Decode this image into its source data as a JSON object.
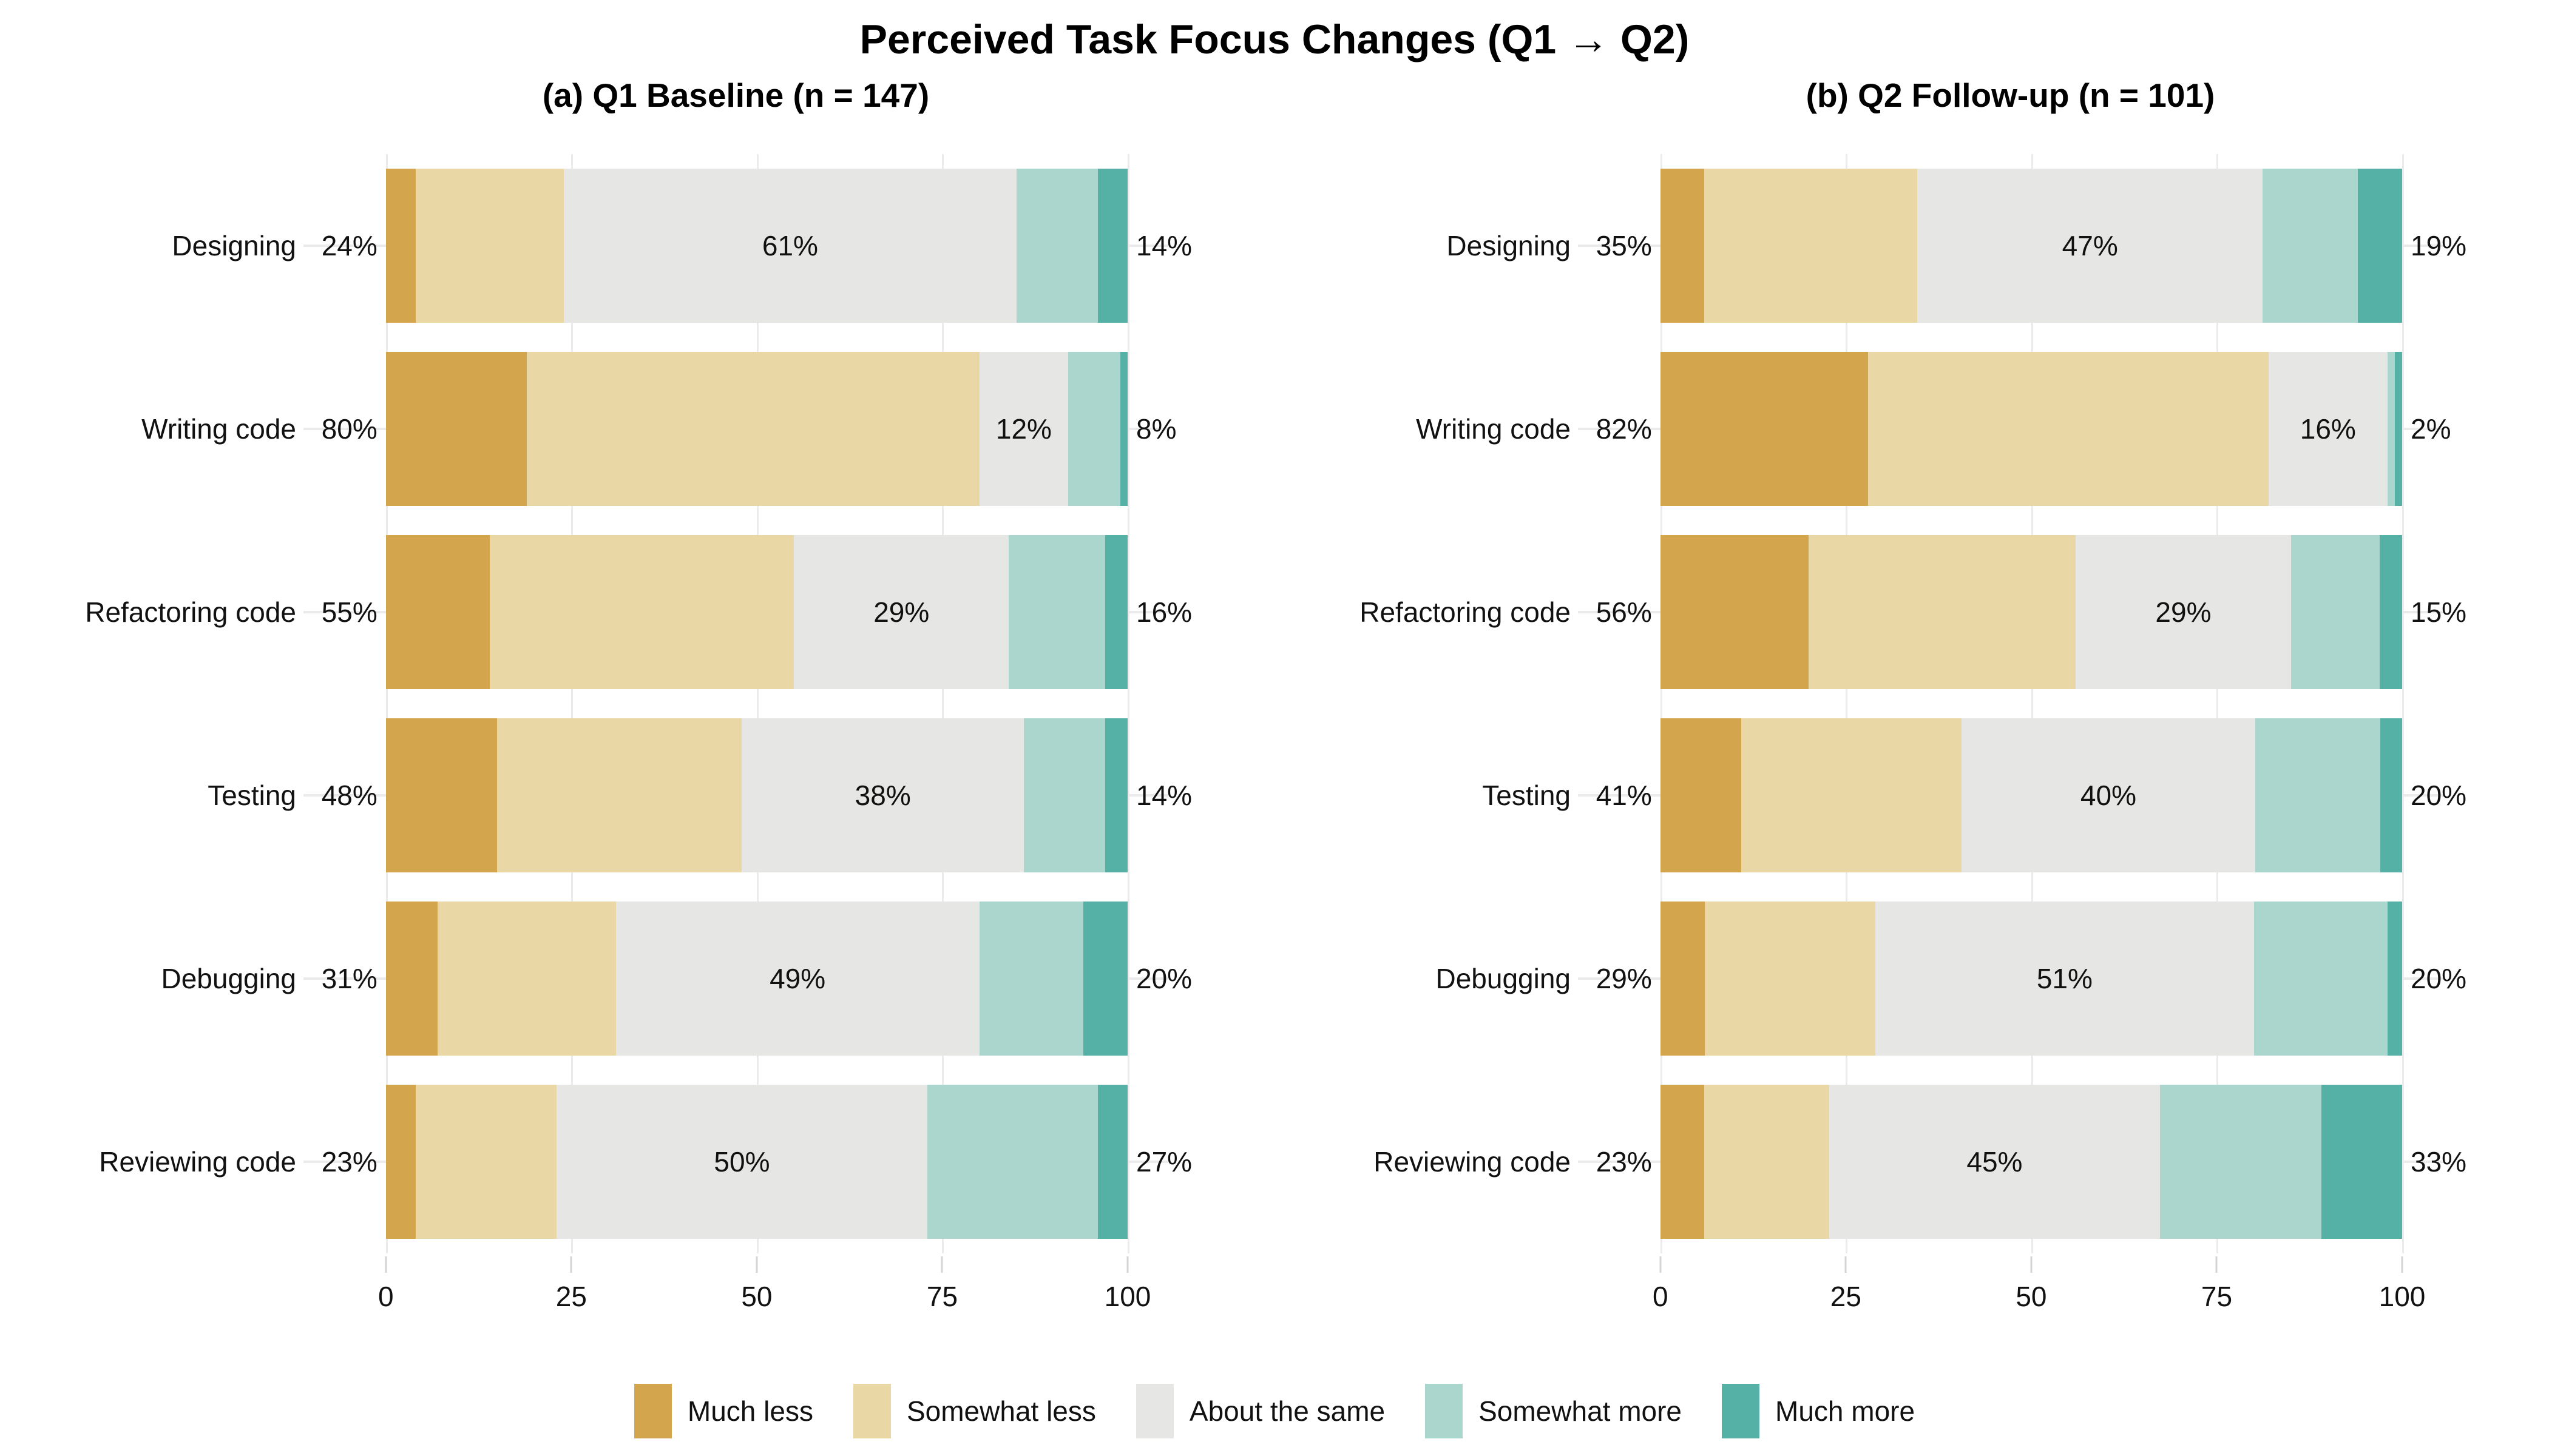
{
  "title": "Perceived Task Focus Changes (Q1 → Q2)",
  "colors": {
    "much_less": "#D3A64E",
    "somewhat_less": "#EAD7A6",
    "about_the_same": "#E6E6E5",
    "somewhat_more": "#ABD6CD",
    "much_more": "#55B0A5",
    "gridline": "#EBEBEB",
    "tick_mark": "#D4D4D4",
    "text": "#111111",
    "background": "#FFFFFF"
  },
  "legend": [
    {
      "label": "Much less",
      "color": "#D3A64E"
    },
    {
      "label": "Somewhat less",
      "color": "#EAD7A6"
    },
    {
      "label": "About the same",
      "color": "#E6E6E5"
    },
    {
      "label": "Somewhat more",
      "color": "#ABD6CD"
    },
    {
      "label": "Much more",
      "color": "#55B0A5"
    }
  ],
  "axis": {
    "tick_labels": [
      "0",
      "25",
      "50",
      "75",
      "100"
    ]
  },
  "chart_data": {
    "type": "bar",
    "stacked": true,
    "orientation": "horizontal",
    "units": "percent of respondents",
    "title": "Perceived Task Focus Changes (Q1 → Q2)",
    "legend_position": "bottom",
    "grid": "vertical-major",
    "xlim": [
      0,
      100
    ],
    "xticks": [
      0,
      25,
      50,
      75,
      100
    ],
    "series_names": [
      "Much less",
      "Somewhat less",
      "About the same",
      "Somewhat more",
      "Much more"
    ],
    "categories": [
      "Designing",
      "Writing code",
      "Refactoring code",
      "Testing",
      "Debugging",
      "Reviewing code"
    ],
    "panels": [
      {
        "label": "(a) Q1 Baseline (n = 147)",
        "rows": [
          {
            "category": "Designing",
            "values": [
              4,
              20,
              61,
              11,
              4
            ],
            "label_less": "24%",
            "label_same": "61%",
            "label_more": "14%"
          },
          {
            "category": "Writing code",
            "values": [
              19,
              61,
              12,
              7,
              1
            ],
            "label_less": "80%",
            "label_same": "12%",
            "label_more": "8%"
          },
          {
            "category": "Refactoring code",
            "values": [
              14,
              41,
              29,
              13,
              3
            ],
            "label_less": "55%",
            "label_same": "29%",
            "label_more": "16%"
          },
          {
            "category": "Testing",
            "values": [
              15,
              33,
              38,
              11,
              3
            ],
            "label_less": "48%",
            "label_same": "38%",
            "label_more": "14%"
          },
          {
            "category": "Debugging",
            "values": [
              7,
              24,
              49,
              14,
              6
            ],
            "label_less": "31%",
            "label_same": "49%",
            "label_more": "20%"
          },
          {
            "category": "Reviewing code",
            "values": [
              4,
              19,
              50,
              23,
              4
            ],
            "label_less": "23%",
            "label_same": "50%",
            "label_more": "27%"
          }
        ]
      },
      {
        "label": "(b) Q2 Follow-up (n = 101)",
        "rows": [
          {
            "category": "Designing",
            "values": [
              6,
              29,
              47,
              13,
              6
            ],
            "label_less": "35%",
            "label_same": "47%",
            "label_more": "19%"
          },
          {
            "category": "Writing code",
            "values": [
              28,
              54,
              16,
              1,
              1
            ],
            "label_less": "82%",
            "label_same": "16%",
            "label_more": "2%"
          },
          {
            "category": "Refactoring code",
            "values": [
              20,
              36,
              29,
              12,
              3
            ],
            "label_less": "56%",
            "label_same": "29%",
            "label_more": "15%"
          },
          {
            "category": "Testing",
            "values": [
              11,
              30,
              40,
              17,
              3
            ],
            "label_less": "41%",
            "label_same": "40%",
            "label_more": "20%"
          },
          {
            "category": "Debugging",
            "values": [
              6,
              23,
              51,
              18,
              2
            ],
            "label_less": "29%",
            "label_same": "51%",
            "label_more": "20%"
          },
          {
            "category": "Reviewing code",
            "values": [
              6,
              17,
              45,
              22,
              11
            ],
            "label_less": "23%",
            "label_same": "45%",
            "label_more": "33%"
          }
        ]
      }
    ]
  }
}
